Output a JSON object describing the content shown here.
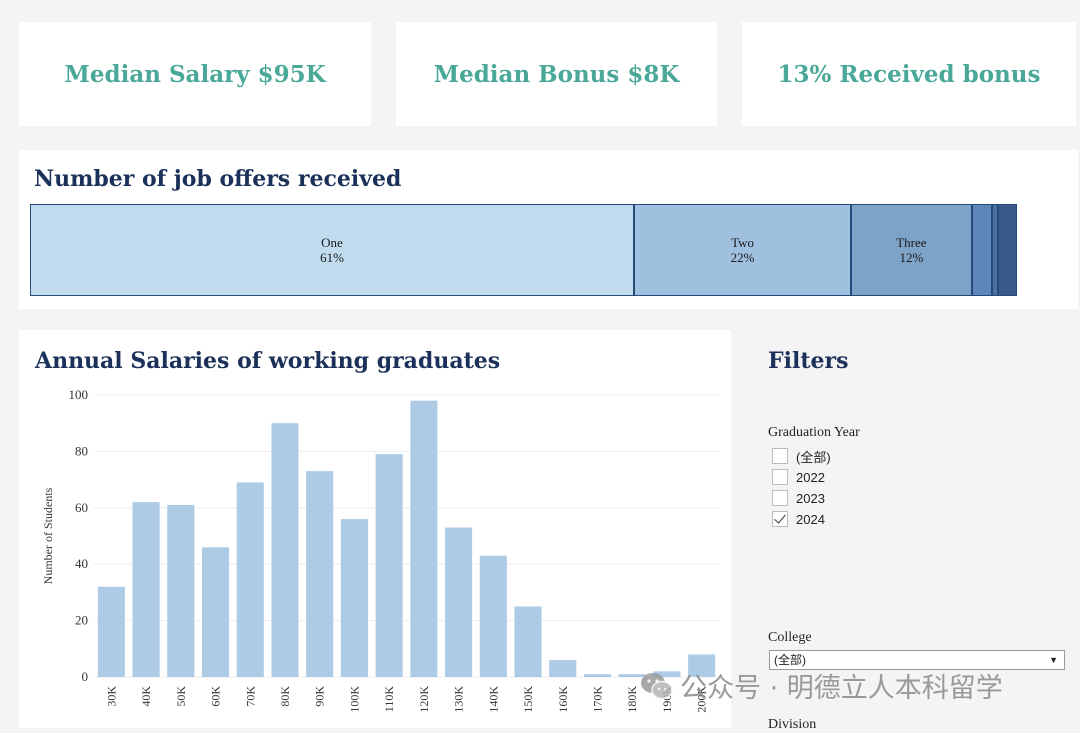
{
  "kpis": {
    "median_salary": "Median Salary $95K",
    "median_bonus": "Median Bonus $8K",
    "received_bonus": "13% Received bonus"
  },
  "offers": {
    "title": "Number of job offers received",
    "segments": [
      {
        "label": "One",
        "pct_text": "61%",
        "share": 0.612,
        "color": "#c1dcef"
      },
      {
        "label": "Two",
        "pct_text": "22%",
        "share": 0.22,
        "color": "#9fc0de"
      },
      {
        "label": "Three",
        "pct_text": "12%",
        "share": 0.122,
        "color": "#7ea3c8"
      },
      {
        "label": "",
        "pct_text": "",
        "share": 0.021,
        "color": "#5f86b8"
      },
      {
        "label": "",
        "pct_text": "",
        "share": 0.006,
        "color": "#4a6fa1"
      },
      {
        "label": "",
        "pct_text": "",
        "share": 0.019,
        "color": "#3a5a8c"
      }
    ]
  },
  "chart_data": {
    "type": "bar",
    "title": "Annual Salaries of working graduates",
    "xlabel": "",
    "ylabel": "Number of Students",
    "categories": [
      "30K",
      "40K",
      "50K",
      "60K",
      "70K",
      "80K",
      "90K",
      "100K",
      "110K",
      "120K",
      "130K",
      "140K",
      "150K",
      "160K",
      "170K",
      "180K",
      "190K",
      "200K"
    ],
    "values": [
      32,
      62,
      61,
      46,
      69,
      90,
      73,
      56,
      79,
      98,
      53,
      43,
      25,
      6,
      1,
      1,
      2,
      8
    ],
    "ylim": [
      0,
      100
    ],
    "yticks": [
      "0",
      "20",
      "40",
      "60",
      "80",
      "100"
    ],
    "bar_color": "#aecbe6",
    "grid": true
  },
  "filters": {
    "title": "Filters",
    "graduation_year": {
      "label": "Graduation Year",
      "options": [
        {
          "label": "(全部)",
          "checked": false
        },
        {
          "label": "2022",
          "checked": false
        },
        {
          "label": "2023",
          "checked": false
        },
        {
          "label": "2024",
          "checked": true
        }
      ]
    },
    "college": {
      "label": "College",
      "selected": "(全部)"
    },
    "division": {
      "label": "Division"
    }
  },
  "watermark": {
    "text": "公众号 · 明德立人本科留学"
  }
}
